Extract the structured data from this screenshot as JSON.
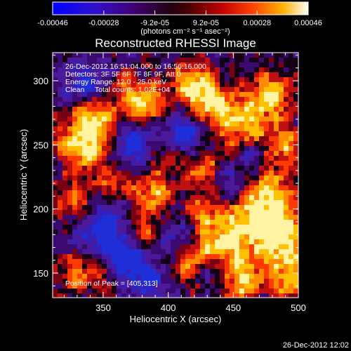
{
  "title": "Reconstructed RHESSI Image",
  "colorbar": {
    "tick_labels": [
      "-0.00046",
      "-0.00028",
      "-9.2e-05",
      "9.2e-05",
      "0.00028",
      "0.00046"
    ],
    "units_label": "(photons cm⁻² s⁻¹ asec⁻²)",
    "colors": [
      "#0000ff",
      "#4000c0",
      "#400060",
      "#000000",
      "#800000",
      "#ff2000",
      "#ff8000",
      "#ffd000",
      "#ffffff"
    ]
  },
  "axes": {
    "x_label": "Heliocentric X (arcsec)",
    "y_label": "Heliocentric Y (arcsec)",
    "x_ticks": [
      "350",
      "400",
      "450",
      "500"
    ],
    "y_ticks": [
      "150",
      "200",
      "250",
      "300"
    ]
  },
  "info": {
    "time_range": "26-Dec-2012 16:51:04.000 to 16:56:16.000",
    "detectors": "Detectors: 3F 5F 6F 7F 8F 9F, Att 0",
    "energy": "Energy Range: 12.0 - 25.0 keV",
    "method": "Clean     Total counts: 1.02E+04",
    "peak": "Position of Peak = [405,313]"
  },
  "footer": "26-Dec-2012 12:02"
}
